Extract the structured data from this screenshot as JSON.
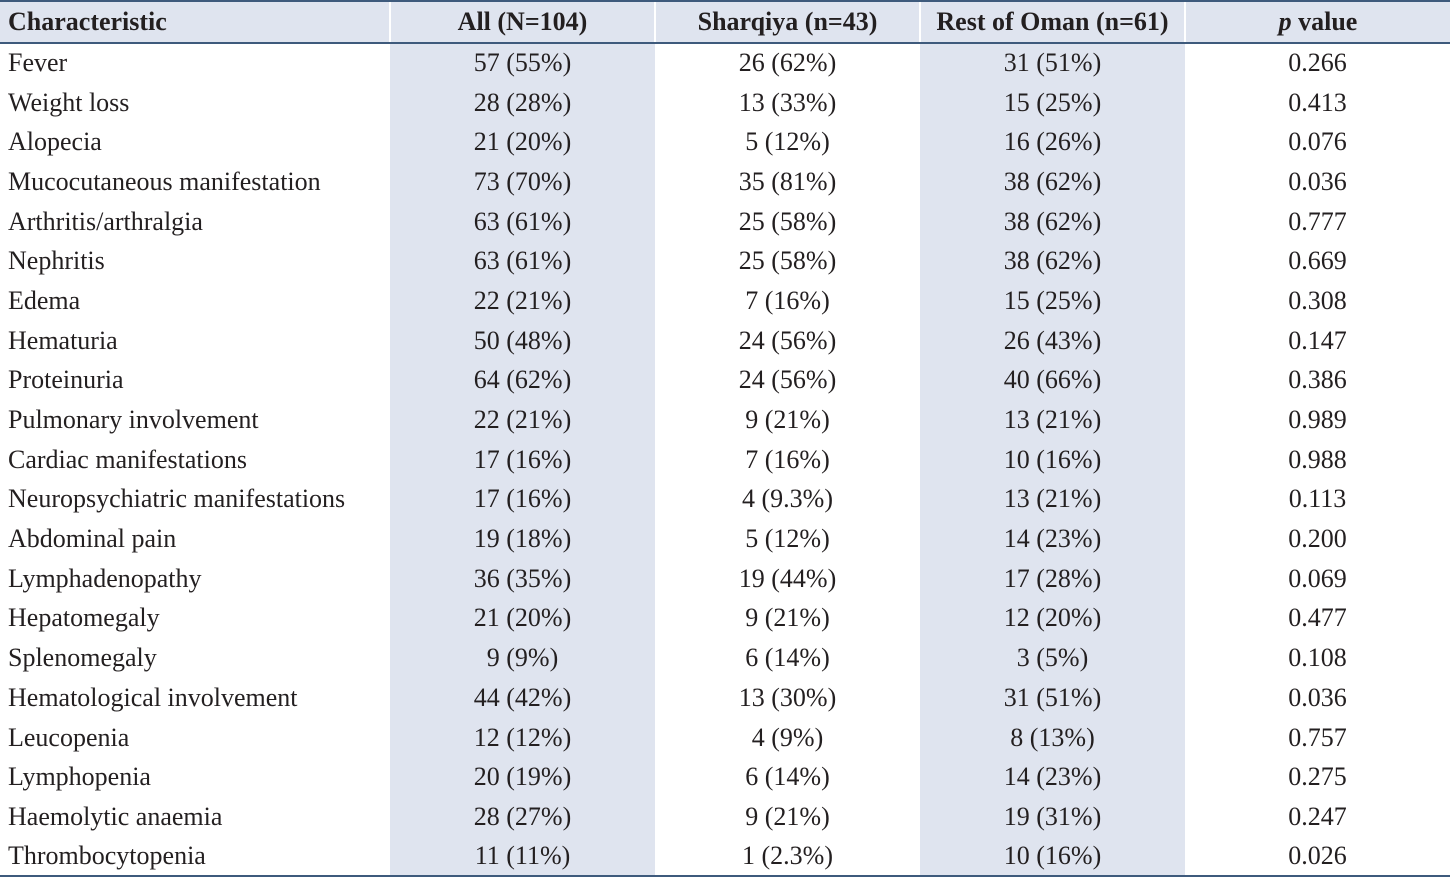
{
  "table": {
    "headers": {
      "characteristic": "Characteristic",
      "all": "All (N=104)",
      "sharqiya": "Sharqiya (n=43)",
      "rest": "Rest of Oman (n=61)",
      "pvalue_p": "p",
      "pvalue_rest": " value"
    },
    "rows": [
      [
        "Fever",
        "57 (55%)",
        "26 (62%)",
        "31 (51%)",
        "0.266"
      ],
      [
        "Weight loss",
        "28 (28%)",
        "13 (33%)",
        "15 (25%)",
        "0.413"
      ],
      [
        "Alopecia",
        "21 (20%)",
        "5 (12%)",
        "16 (26%)",
        "0.076"
      ],
      [
        "Mucocutaneous manifestation",
        "73 (70%)",
        "35 (81%)",
        "38 (62%)",
        "0.036"
      ],
      [
        "Arthritis/arthralgia",
        "63 (61%)",
        "25 (58%)",
        "38 (62%)",
        "0.777"
      ],
      [
        "Nephritis",
        "63 (61%)",
        "25 (58%)",
        "38 (62%)",
        "0.669"
      ],
      [
        "Edema",
        "22 (21%)",
        "7 (16%)",
        "15 (25%)",
        "0.308"
      ],
      [
        "Hematuria",
        "50 (48%)",
        "24 (56%)",
        "26 (43%)",
        "0.147"
      ],
      [
        "Proteinuria",
        "64 (62%)",
        "24 (56%)",
        "40 (66%)",
        "0.386"
      ],
      [
        "Pulmonary involvement",
        "22 (21%)",
        "9 (21%)",
        "13 (21%)",
        "0.989"
      ],
      [
        "Cardiac manifestations",
        "17 (16%)",
        "7 (16%)",
        "10 (16%)",
        "0.988"
      ],
      [
        "Neuropsychiatric manifestations",
        "17 (16%)",
        "4 (9.3%)",
        "13 (21%)",
        "0.113"
      ],
      [
        "Abdominal pain",
        "19 (18%)",
        "5 (12%)",
        "14 (23%)",
        "0.200"
      ],
      [
        "Lymphadenopathy",
        "36 (35%)",
        "19 (44%)",
        "17 (28%)",
        "0.069"
      ],
      [
        "Hepatomegaly",
        "21 (20%)",
        "9 (21%)",
        "12 (20%)",
        "0.477"
      ],
      [
        "Splenomegaly",
        "9 (9%)",
        "6 (14%)",
        "3 (5%)",
        "0.108"
      ],
      [
        "Hematological involvement",
        "44 (42%)",
        "13 (30%)",
        "31 (51%)",
        "0.036"
      ],
      [
        "Leucopenia",
        "12 (12%)",
        "4 (9%)",
        "8 (13%)",
        "0.757"
      ],
      [
        "Lymphopenia",
        "20 (19%)",
        "6 (14%)",
        "14 (23%)",
        "0.275"
      ],
      [
        "Haemolytic anaemia",
        "28 (27%)",
        "9 (21%)",
        "19 (31%)",
        "0.247"
      ],
      [
        "Thrombocytopenia",
        "11 (11%)",
        "1 (2.3%)",
        "10 (16%)",
        "0.026"
      ]
    ]
  },
  "colors": {
    "header_bg": "#dfe4ef",
    "shaded_column_bg": "#dfe4ef",
    "rule": "#3e5a7c",
    "text": "#231f20"
  }
}
